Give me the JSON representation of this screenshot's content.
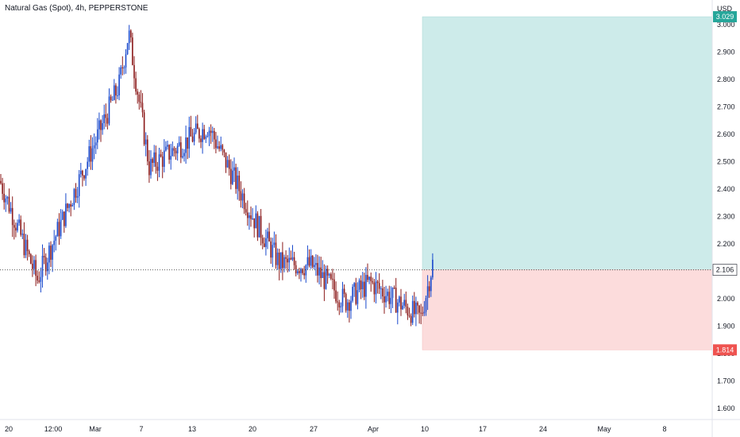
{
  "header": {
    "title": "Natural Gas (Spot), 4h, PEPPERSTONE"
  },
  "chart_data": {
    "type": "candlestick",
    "title": "Natural Gas (Spot), 4h, PEPPERSTONE",
    "currency": "USD",
    "ylim": [
      1.56,
      3.09
    ],
    "y_ticks": [
      "3.000",
      "2.900",
      "2.800",
      "2.700",
      "2.600",
      "2.500",
      "2.400",
      "2.300",
      "2.200",
      "2.000",
      "1.900",
      "1.800",
      "1.700",
      "1.600"
    ],
    "x_ticks": [
      "20",
      "12:00",
      "Mar",
      "7",
      "13",
      "20",
      "27",
      "Apr",
      "10",
      "17",
      "24",
      "May",
      "8"
    ],
    "colors": {
      "up": "#1848cc",
      "down": "#8b1a1a",
      "profit_zone": "#cdebea",
      "loss_zone": "#fcdcdc",
      "target_badge": "#26a69a",
      "stop_badge": "#ef5350",
      "current_badge": "#ffffff"
    },
    "position": {
      "type": "long",
      "entry": 2.106,
      "target": 3.029,
      "stop": 1.814
    },
    "labels": {
      "target": "3.029",
      "entry": "2.106",
      "stop": "1.814"
    },
    "key_prices": [
      {
        "date": "Feb 20",
        "price": 2.43
      },
      {
        "date": "Feb 26",
        "price": 2.07
      },
      {
        "date": "Mar 3",
        "price": 2.78
      },
      {
        "date": "Mar 5",
        "price": 2.97
      },
      {
        "date": "Mar 10",
        "price": 2.48
      },
      {
        "date": "Mar 15",
        "price": 2.63
      },
      {
        "date": "Mar 20",
        "price": 2.28
      },
      {
        "date": "Mar 24",
        "price": 2.13
      },
      {
        "date": "Mar 28",
        "price": 2.12
      },
      {
        "date": "Apr 1",
        "price": 1.99
      },
      {
        "date": "Apr 3",
        "price": 2.06
      },
      {
        "date": "Apr 9",
        "price": 1.93
      },
      {
        "date": "Apr 11",
        "price": 2.13
      }
    ]
  }
}
